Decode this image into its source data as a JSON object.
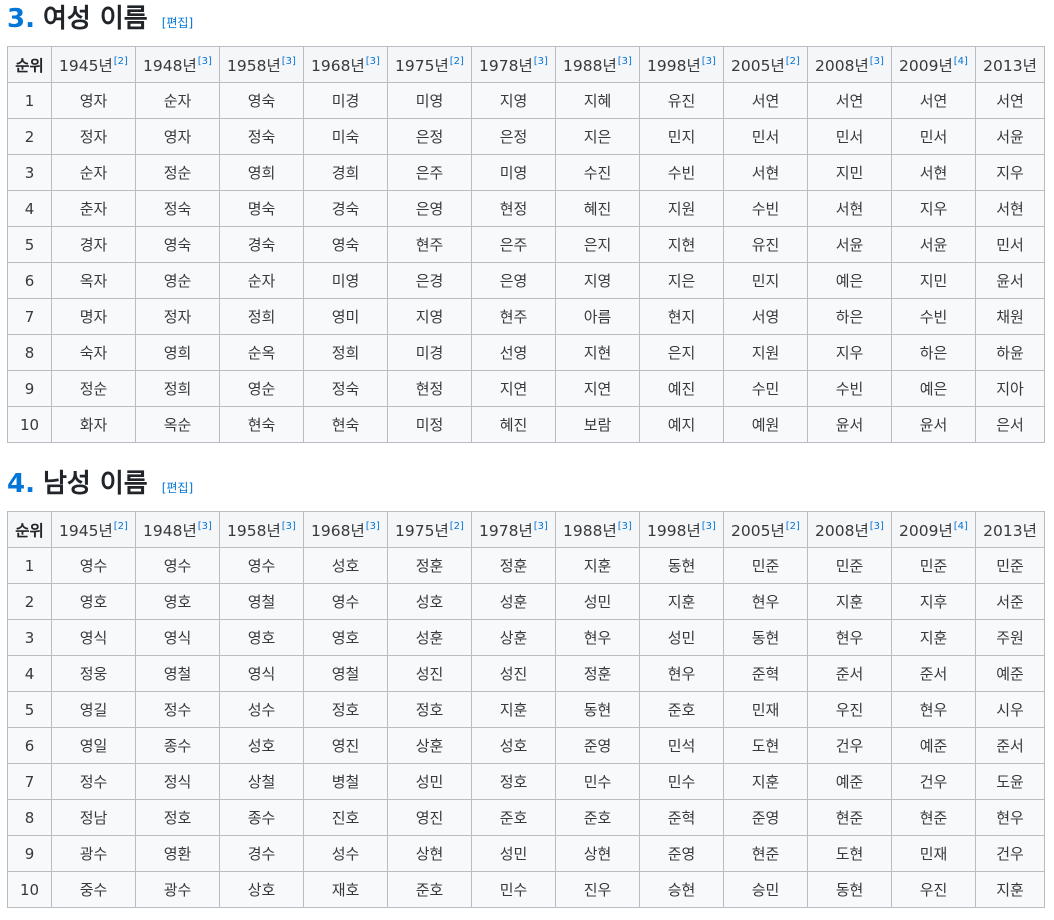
{
  "female": {
    "number": "3.",
    "title": "여성 이름",
    "edit_label": "편집",
    "rank_header": "순위",
    "years": [
      {
        "year": "1945년",
        "ref": "[2]"
      },
      {
        "year": "1948년",
        "ref": "[3]"
      },
      {
        "year": "1958년",
        "ref": "[3]"
      },
      {
        "year": "1968년",
        "ref": "[3]"
      },
      {
        "year": "1975년",
        "ref": "[2]"
      },
      {
        "year": "1978년",
        "ref": "[3]"
      },
      {
        "year": "1988년",
        "ref": "[3]"
      },
      {
        "year": "1998년",
        "ref": "[3]"
      },
      {
        "year": "2005년",
        "ref": "[2]"
      },
      {
        "year": "2008년",
        "ref": "[3]"
      },
      {
        "year": "2009년",
        "ref": "[4]"
      },
      {
        "year": "2013년",
        "ref": ""
      }
    ],
    "rows": [
      {
        "rank": "1",
        "names": [
          "영자",
          "순자",
          "영숙",
          "미경",
          "미영",
          "지영",
          "지혜",
          "유진",
          "서연",
          "서연",
          "서연",
          "서연"
        ]
      },
      {
        "rank": "2",
        "names": [
          "정자",
          "영자",
          "정숙",
          "미숙",
          "은정",
          "은정",
          "지은",
          "민지",
          "민서",
          "민서",
          "민서",
          "서윤"
        ]
      },
      {
        "rank": "3",
        "names": [
          "순자",
          "정순",
          "영희",
          "경희",
          "은주",
          "미영",
          "수진",
          "수빈",
          "서현",
          "지민",
          "서현",
          "지우"
        ]
      },
      {
        "rank": "4",
        "names": [
          "춘자",
          "정숙",
          "명숙",
          "경숙",
          "은영",
          "현정",
          "혜진",
          "지원",
          "수빈",
          "서현",
          "지우",
          "서현"
        ]
      },
      {
        "rank": "5",
        "names": [
          "경자",
          "영숙",
          "경숙",
          "영숙",
          "현주",
          "은주",
          "은지",
          "지현",
          "유진",
          "서윤",
          "서윤",
          "민서"
        ]
      },
      {
        "rank": "6",
        "names": [
          "옥자",
          "영순",
          "순자",
          "미영",
          "은경",
          "은영",
          "지영",
          "지은",
          "민지",
          "예은",
          "지민",
          "윤서"
        ]
      },
      {
        "rank": "7",
        "names": [
          "명자",
          "정자",
          "정희",
          "영미",
          "지영",
          "현주",
          "아름",
          "현지",
          "서영",
          "하은",
          "수빈",
          "채원"
        ]
      },
      {
        "rank": "8",
        "names": [
          "숙자",
          "영희",
          "순옥",
          "정희",
          "미경",
          "선영",
          "지현",
          "은지",
          "지원",
          "지우",
          "하은",
          "하윤"
        ]
      },
      {
        "rank": "9",
        "names": [
          "정순",
          "정희",
          "영순",
          "정숙",
          "현정",
          "지연",
          "지연",
          "예진",
          "수민",
          "수빈",
          "예은",
          "지아"
        ]
      },
      {
        "rank": "10",
        "names": [
          "화자",
          "옥순",
          "현숙",
          "현숙",
          "미정",
          "혜진",
          "보람",
          "예지",
          "예원",
          "윤서",
          "윤서",
          "은서"
        ]
      }
    ]
  },
  "male": {
    "number": "4.",
    "title": "남성 이름",
    "edit_label": "편집",
    "rank_header": "순위",
    "years": [
      {
        "year": "1945년",
        "ref": "[2]"
      },
      {
        "year": "1948년",
        "ref": "[3]"
      },
      {
        "year": "1958년",
        "ref": "[3]"
      },
      {
        "year": "1968년",
        "ref": "[3]"
      },
      {
        "year": "1975년",
        "ref": "[2]"
      },
      {
        "year": "1978년",
        "ref": "[3]"
      },
      {
        "year": "1988년",
        "ref": "[3]"
      },
      {
        "year": "1998년",
        "ref": "[3]"
      },
      {
        "year": "2005년",
        "ref": "[2]"
      },
      {
        "year": "2008년",
        "ref": "[3]"
      },
      {
        "year": "2009년",
        "ref": "[4]"
      },
      {
        "year": "2013년",
        "ref": ""
      }
    ],
    "rows": [
      {
        "rank": "1",
        "names": [
          "영수",
          "영수",
          "영수",
          "성호",
          "정훈",
          "정훈",
          "지훈",
          "동현",
          "민준",
          "민준",
          "민준",
          "민준"
        ]
      },
      {
        "rank": "2",
        "names": [
          "영호",
          "영호",
          "영철",
          "영수",
          "성호",
          "성훈",
          "성민",
          "지훈",
          "현우",
          "지훈",
          "지후",
          "서준"
        ]
      },
      {
        "rank": "3",
        "names": [
          "영식",
          "영식",
          "영호",
          "영호",
          "성훈",
          "상훈",
          "현우",
          "성민",
          "동현",
          "현우",
          "지훈",
          "주원"
        ]
      },
      {
        "rank": "4",
        "names": [
          "정웅",
          "영철",
          "영식",
          "영철",
          "성진",
          "성진",
          "정훈",
          "현우",
          "준혁",
          "준서",
          "준서",
          "예준"
        ]
      },
      {
        "rank": "5",
        "names": [
          "영길",
          "정수",
          "성수",
          "정호",
          "정호",
          "지훈",
          "동현",
          "준호",
          "민재",
          "우진",
          "현우",
          "시우"
        ]
      },
      {
        "rank": "6",
        "names": [
          "영일",
          "종수",
          "성호",
          "영진",
          "상훈",
          "성호",
          "준영",
          "민석",
          "도현",
          "건우",
          "예준",
          "준서"
        ]
      },
      {
        "rank": "7",
        "names": [
          "정수",
          "정식",
          "상철",
          "병철",
          "성민",
          "정호",
          "민수",
          "민수",
          "지훈",
          "예준",
          "건우",
          "도윤"
        ]
      },
      {
        "rank": "8",
        "names": [
          "정남",
          "정호",
          "종수",
          "진호",
          "영진",
          "준호",
          "준호",
          "준혁",
          "준영",
          "현준",
          "현준",
          "현우"
        ]
      },
      {
        "rank": "9",
        "names": [
          "광수",
          "영환",
          "경수",
          "성수",
          "상현",
          "성민",
          "상현",
          "준영",
          "현준",
          "도현",
          "민재",
          "건우"
        ]
      },
      {
        "rank": "10",
        "names": [
          "중수",
          "광수",
          "상호",
          "재호",
          "준호",
          "민수",
          "진우",
          "승현",
          "승민",
          "동현",
          "우진",
          "지훈"
        ]
      }
    ]
  }
}
